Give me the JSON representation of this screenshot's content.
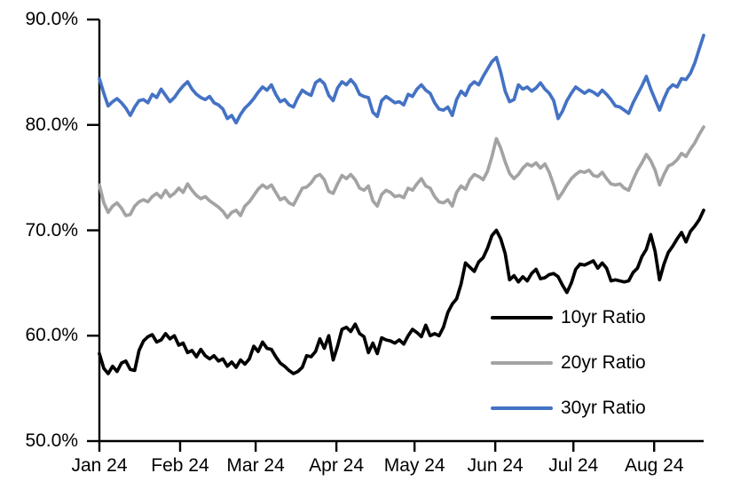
{
  "chart_data": {
    "type": "line",
    "title": "",
    "xlabel": "",
    "ylabel": "",
    "x_tick_labels": [
      "Jan 24",
      "Feb 24",
      "Mar 24",
      "Apr 24",
      "May 24",
      "Jun 24",
      "Jul 24",
      "Aug 24"
    ],
    "y_tick_labels": [
      "90.0%",
      "80.0%",
      "70.0%",
      "60.0%",
      "50.0%"
    ],
    "y_ticks": [
      90,
      80,
      70,
      60,
      50
    ],
    "ylim": [
      50,
      90
    ],
    "grid": false,
    "legend_position": "inside-lower-right",
    "x_range_note": "daily values from Jan 2024 through late Aug 2024, evenly spaced",
    "series": [
      {
        "name": "10yr Ratio",
        "color": "#000000",
        "values": [
          58.3,
          56.9,
          56.4,
          57.1,
          56.6,
          57.4,
          57.6,
          56.8,
          56.7,
          58.6,
          59.5,
          59.9,
          60.1,
          59.4,
          59.6,
          60.2,
          59.7,
          60.0,
          59.1,
          59.3,
          58.4,
          58.6,
          58.0,
          58.7,
          58.1,
          57.8,
          58.1,
          57.6,
          57.8,
          57.1,
          57.5,
          57.0,
          57.7,
          57.3,
          57.8,
          59.0,
          58.5,
          59.4,
          58.8,
          58.7,
          58.0,
          57.4,
          57.1,
          56.7,
          56.4,
          56.6,
          57.0,
          58.1,
          58.0,
          58.5,
          59.7,
          58.8,
          60.0,
          57.7,
          59.0,
          60.6,
          60.8,
          60.4,
          61.1,
          60.2,
          59.9,
          58.4,
          59.3,
          58.3,
          59.8,
          59.6,
          59.5,
          59.3,
          59.6,
          59.2,
          60.0,
          60.6,
          60.3,
          59.9,
          61.0,
          60.0,
          60.2,
          60.0,
          60.8,
          62.2,
          63.0,
          63.5,
          64.9,
          66.9,
          66.5,
          66.1,
          67.0,
          67.4,
          68.3,
          69.5,
          70.0,
          69.2,
          67.8,
          65.3,
          65.7,
          65.1,
          65.6,
          65.2,
          65.9,
          66.3,
          65.4,
          65.5,
          65.8,
          65.9,
          65.6,
          64.8,
          64.1,
          65.0,
          66.3,
          66.8,
          66.7,
          66.9,
          67.1,
          66.4,
          66.9,
          66.4,
          65.2,
          65.3,
          65.2,
          65.1,
          65.2,
          66.0,
          66.4,
          67.5,
          68.2,
          69.6,
          68.0,
          65.3,
          66.8,
          67.9,
          68.5,
          69.2,
          69.8,
          68.9,
          69.9,
          70.4,
          71.0,
          71.9
        ]
      },
      {
        "name": "20yr Ratio",
        "color": "#A3A3A3",
        "values": [
          74.3,
          72.6,
          71.7,
          72.3,
          72.6,
          72.1,
          71.4,
          71.5,
          72.3,
          72.7,
          72.9,
          72.7,
          73.2,
          73.5,
          73.1,
          73.8,
          73.2,
          73.5,
          74.0,
          73.6,
          74.4,
          73.8,
          73.3,
          73.0,
          73.2,
          72.8,
          72.5,
          72.2,
          71.8,
          71.2,
          71.7,
          71.9,
          71.4,
          72.3,
          72.7,
          73.3,
          73.9,
          74.3,
          74.0,
          74.3,
          73.6,
          72.9,
          73.1,
          72.6,
          72.4,
          73.2,
          74.0,
          74.1,
          74.5,
          75.1,
          75.3,
          74.8,
          73.7,
          73.5,
          74.4,
          75.2,
          74.9,
          75.3,
          74.8,
          74.0,
          73.8,
          74.2,
          72.8,
          72.3,
          73.4,
          73.8,
          73.6,
          73.2,
          73.3,
          73.1,
          74.0,
          73.8,
          74.4,
          74.9,
          74.2,
          74.0,
          73.2,
          72.7,
          72.6,
          72.9,
          72.3,
          73.6,
          74.2,
          73.9,
          74.8,
          75.3,
          75.1,
          74.8,
          75.6,
          77.0,
          78.7,
          77.8,
          76.5,
          75.4,
          74.9,
          75.3,
          75.9,
          76.3,
          76.1,
          76.4,
          75.9,
          76.3,
          75.5,
          74.3,
          73.0,
          73.6,
          74.3,
          74.9,
          75.3,
          75.6,
          75.5,
          75.7,
          75.2,
          75.1,
          75.5,
          74.9,
          74.4,
          74.3,
          74.4,
          74.0,
          73.8,
          74.8,
          75.7,
          76.4,
          77.2,
          76.6,
          75.7,
          74.3,
          75.3,
          76.1,
          76.3,
          76.7,
          77.3,
          77.0,
          77.7,
          78.3,
          79.1,
          79.8
        ]
      },
      {
        "name": "30yr Ratio",
        "color": "#4472C4",
        "values": [
          84.4,
          83.0,
          81.8,
          82.2,
          82.5,
          82.1,
          81.6,
          80.9,
          81.7,
          82.3,
          82.4,
          82.1,
          82.9,
          82.6,
          83.4,
          82.8,
          82.2,
          82.6,
          83.2,
          83.7,
          84.1,
          83.4,
          82.9,
          82.6,
          82.4,
          82.7,
          82.1,
          81.9,
          81.5,
          80.6,
          80.9,
          80.2,
          81.0,
          81.6,
          82.0,
          82.5,
          83.1,
          83.6,
          83.3,
          83.8,
          82.9,
          82.2,
          82.4,
          81.9,
          81.7,
          82.6,
          83.3,
          83.0,
          82.8,
          84.0,
          84.3,
          83.9,
          82.8,
          82.3,
          83.5,
          84.1,
          83.8,
          84.3,
          83.8,
          82.9,
          82.7,
          82.6,
          81.2,
          80.8,
          82.3,
          82.7,
          82.4,
          82.1,
          82.2,
          81.9,
          82.9,
          82.7,
          83.4,
          83.8,
          83.3,
          83.0,
          82.1,
          81.5,
          81.4,
          81.7,
          80.9,
          82.4,
          83.2,
          82.8,
          83.7,
          84.1,
          83.8,
          84.6,
          85.3,
          86.0,
          86.4,
          85.0,
          83.2,
          82.2,
          82.4,
          83.8,
          83.4,
          83.6,
          83.2,
          83.5,
          84.0,
          83.4,
          83.0,
          82.3,
          80.6,
          81.3,
          82.3,
          83.0,
          83.6,
          83.3,
          83.0,
          83.3,
          83.1,
          82.8,
          83.3,
          82.9,
          82.4,
          81.8,
          81.7,
          81.4,
          81.1,
          82.1,
          82.9,
          83.7,
          84.6,
          83.4,
          82.4,
          81.4,
          82.5,
          83.4,
          83.8,
          83.6,
          84.4,
          84.3,
          84.9,
          85.9,
          87.2,
          88.5
        ]
      }
    ]
  }
}
